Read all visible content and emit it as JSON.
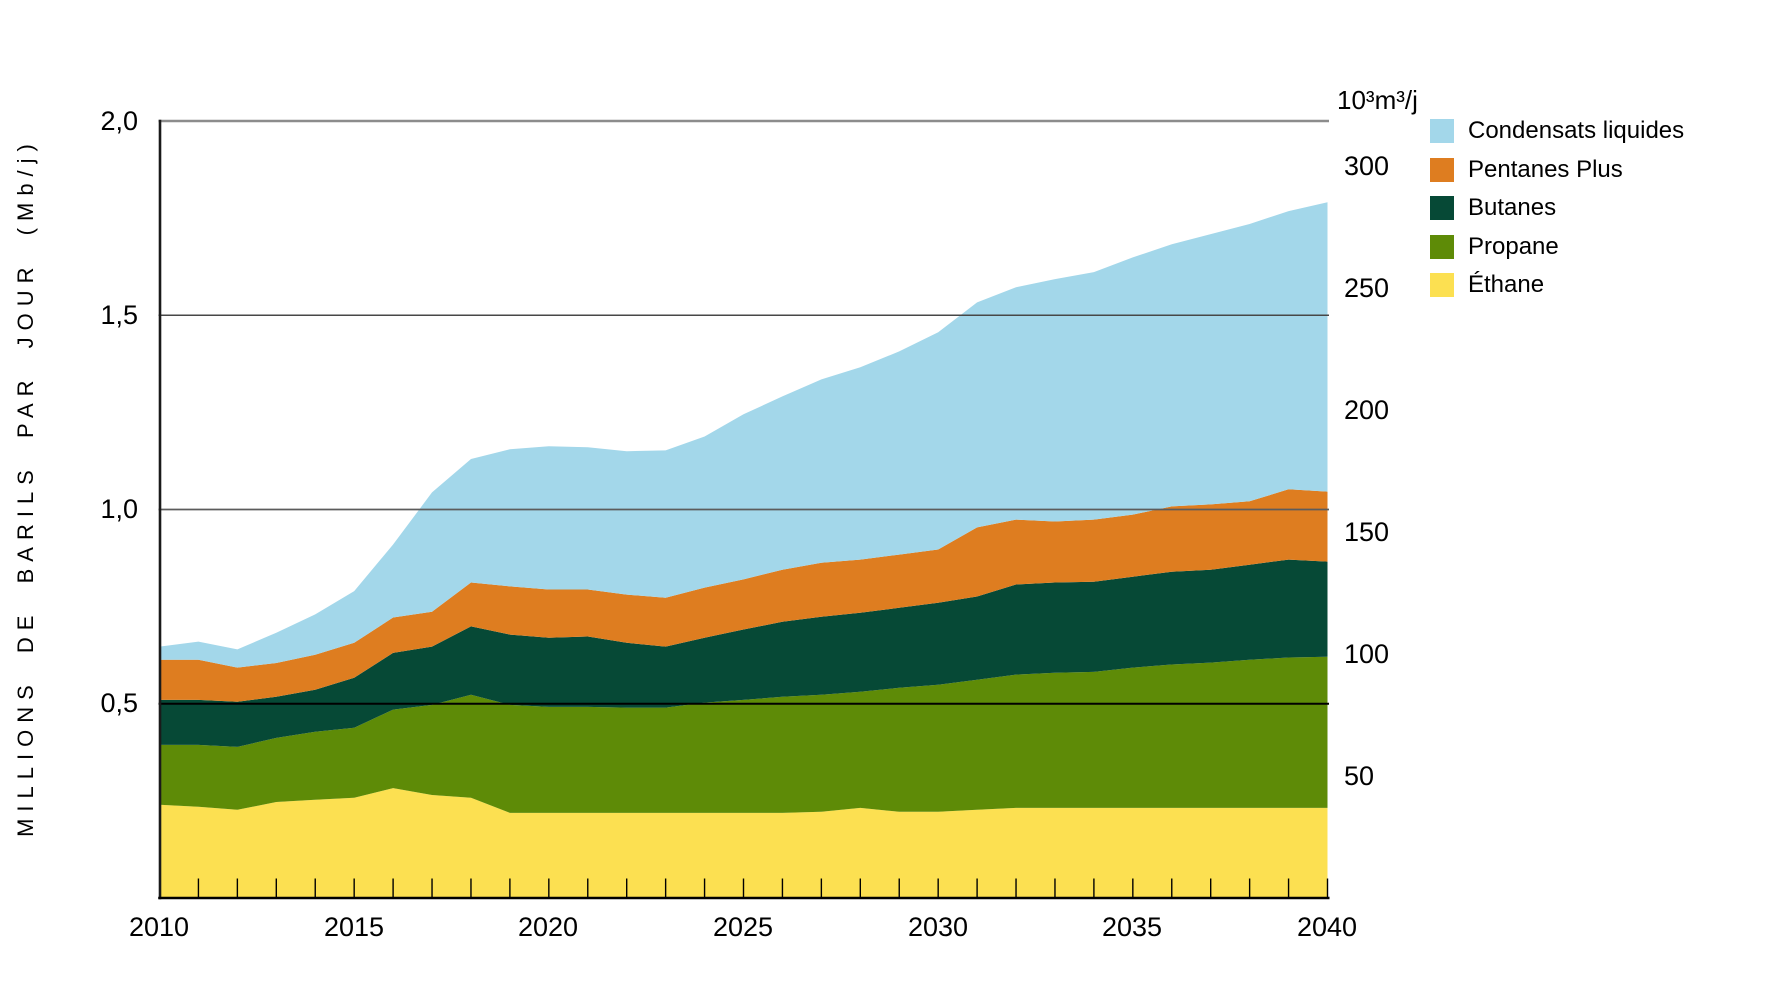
{
  "page": {
    "background": "#ffffff"
  },
  "chart_data": {
    "type": "area",
    "stacked": true,
    "grid": true,
    "legend_position": "top-right",
    "y_axis_left": {
      "title": "MILLIONS DE BARILS PAR JOUR (Mb/j)",
      "ylim": [
        0,
        2.0
      ],
      "ticks": [
        {
          "label": "2,0",
          "value": 2.0
        },
        {
          "label": "1,5",
          "value": 1.5
        },
        {
          "label": "1,0",
          "value": 1.0
        },
        {
          "label": "0,5",
          "value": 0.5
        }
      ]
    },
    "y_axis_right": {
      "title": "10³m³/j",
      "units_per_mb": 158.987,
      "ticks": [
        {
          "label": "300",
          "value": 300
        },
        {
          "label": "250",
          "value": 250
        },
        {
          "label": "200",
          "value": 200
        },
        {
          "label": "150",
          "value": 150
        },
        {
          "label": "100",
          "value": 100
        },
        {
          "label": "50",
          "value": 50
        }
      ]
    },
    "x_axis": {
      "range": [
        2010,
        2040
      ],
      "minor_tick_every_years": 1,
      "labels": [
        {
          "label": "2010",
          "value": 2010
        },
        {
          "label": "2015",
          "value": 2015
        },
        {
          "label": "2020",
          "value": 2020
        },
        {
          "label": "2025",
          "value": 2025
        },
        {
          "label": "2030",
          "value": 2030
        },
        {
          "label": "2035",
          "value": 2035
        },
        {
          "label": "2040",
          "value": 2040
        }
      ]
    },
    "x": [
      2010,
      2011,
      2012,
      2013,
      2014,
      2015,
      2016,
      2017,
      2018,
      2019,
      2020,
      2021,
      2022,
      2023,
      2024,
      2025,
      2026,
      2027,
      2028,
      2029,
      2030,
      2031,
      2032,
      2033,
      2034,
      2035,
      2036,
      2037,
      2038,
      2039,
      2040
    ],
    "series": [
      {
        "name": "Éthane",
        "color": "#FCE051",
        "values": [
          0.24,
          0.235,
          0.227,
          0.247,
          0.253,
          0.258,
          0.283,
          0.265,
          0.258,
          0.219,
          0.219,
          0.219,
          0.219,
          0.219,
          0.219,
          0.219,
          0.219,
          0.222,
          0.232,
          0.222,
          0.222,
          0.227,
          0.232,
          0.232,
          0.232,
          0.232,
          0.232,
          0.232,
          0.232,
          0.232,
          0.232
        ]
      },
      {
        "name": "Propane",
        "color": "#5E8B07",
        "values": [
          0.154,
          0.159,
          0.162,
          0.165,
          0.175,
          0.18,
          0.202,
          0.232,
          0.265,
          0.278,
          0.273,
          0.273,
          0.271,
          0.271,
          0.284,
          0.291,
          0.299,
          0.301,
          0.299,
          0.319,
          0.327,
          0.335,
          0.343,
          0.348,
          0.35,
          0.361,
          0.369,
          0.374,
          0.381,
          0.387,
          0.389
        ]
      },
      {
        "name": "Butanes",
        "color": "#064936",
        "values": [
          0.116,
          0.116,
          0.116,
          0.106,
          0.108,
          0.129,
          0.146,
          0.15,
          0.176,
          0.181,
          0.178,
          0.181,
          0.167,
          0.157,
          0.167,
          0.181,
          0.193,
          0.201,
          0.203,
          0.206,
          0.211,
          0.214,
          0.232,
          0.232,
          0.232,
          0.234,
          0.239,
          0.239,
          0.245,
          0.252,
          0.245
        ]
      },
      {
        "name": "Pentanes Plus",
        "color": "#DE7D20",
        "values": [
          0.103,
          0.103,
          0.088,
          0.087,
          0.09,
          0.09,
          0.091,
          0.09,
          0.113,
          0.124,
          0.124,
          0.121,
          0.124,
          0.126,
          0.129,
          0.129,
          0.134,
          0.139,
          0.137,
          0.137,
          0.137,
          0.178,
          0.167,
          0.157,
          0.16,
          0.16,
          0.168,
          0.168,
          0.163,
          0.181,
          0.18
        ]
      },
      {
        "name": "Condensats liquides",
        "color": "#A3D7EA",
        "values": [
          0.034,
          0.047,
          0.047,
          0.078,
          0.104,
          0.133,
          0.188,
          0.307,
          0.318,
          0.353,
          0.369,
          0.366,
          0.369,
          0.379,
          0.389,
          0.425,
          0.446,
          0.472,
          0.495,
          0.523,
          0.559,
          0.579,
          0.598,
          0.624,
          0.637,
          0.662,
          0.675,
          0.696,
          0.714,
          0.716,
          0.745
        ]
      }
    ],
    "legend": {
      "items": [
        {
          "label": "Condensats liquides",
          "color": "#A3D7EA"
        },
        {
          "label": "Pentanes Plus",
          "color": "#DE7D20"
        },
        {
          "label": "Butanes",
          "color": "#064936"
        },
        {
          "label": "Propane",
          "color": "#5E8B07"
        },
        {
          "label": "Éthane",
          "color": "#FCE051"
        }
      ]
    }
  }
}
